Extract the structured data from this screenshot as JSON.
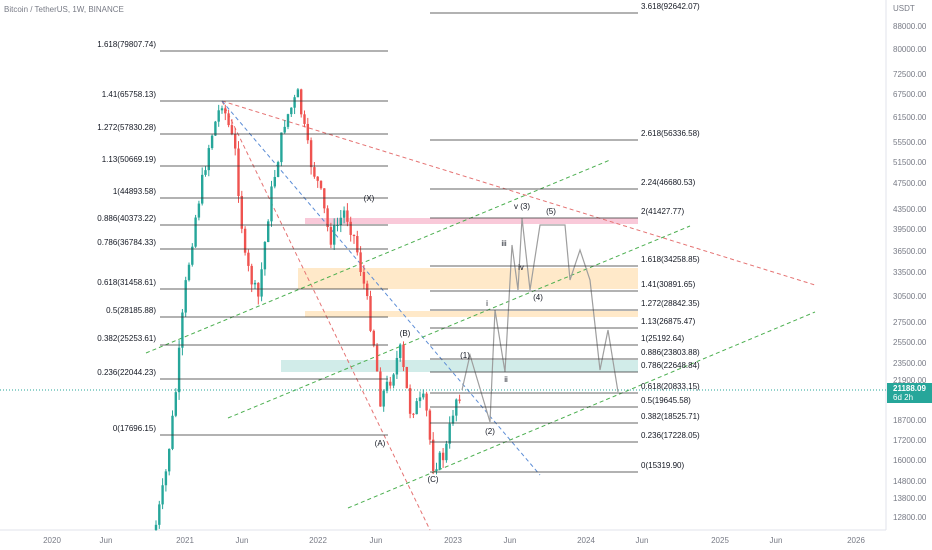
{
  "header": {
    "title": "Bitcoin / TetherUS, 1W, BINANCE"
  },
  "price_axis": {
    "unit": "USDT",
    "ticks": [
      "88000.00",
      "80000.00",
      "72500.00",
      "67500.00",
      "61500.00",
      "55500.00",
      "51500.00",
      "47500.00",
      "43500.00",
      "39500.00",
      "36500.00",
      "33500.00",
      "30500.00",
      "27500.00",
      "25500.00",
      "23500.00",
      "21900.00",
      "18700.00",
      "17200.00",
      "16000.00",
      "14800.00",
      "13800.00",
      "12800.00"
    ]
  },
  "current_price": {
    "value": "21188.09",
    "countdown": "6d 2h"
  },
  "time_axis": {
    "labels": [
      "2020",
      "Jun",
      "2021",
      "Jun",
      "2022",
      "Jun",
      "2023",
      "Jun",
      "2024",
      "Jun",
      "2025",
      "Jun",
      "2026"
    ]
  },
  "fib_left": {
    "levels": [
      "1.618(79807.74)",
      "1.41(65758.13)",
      "1.272(57830.28)",
      "1.13(50669.19)",
      "1(44893.58)",
      "0.886(40373.22)",
      "0.786(36784.33)",
      "0.618(31458.61)",
      "0.5(28185.88)",
      "0.382(25253.61)",
      "0.236(22044.23)",
      "0(17696.15)"
    ]
  },
  "fib_right": {
    "levels": [
      "3.618(92642.07)",
      "2.618(56336.58)",
      "2.24(46680.53)",
      "2(41427.77)",
      "1.618(34258.85)",
      "1.41(30891.65)",
      "1.272(28842.35)",
      "1.13(26875.47)",
      "1(25192.64)",
      "0.886(23803.88)",
      "0.786(22648.84)",
      "0.618(20833.15)",
      "0.5(19645.58)",
      "0.382(18525.71)",
      "0.236(17228.05)",
      "0(15319.90)"
    ]
  },
  "wave_labels": [
    "(X)",
    "(B)",
    "(A)",
    "(C)",
    "(1)",
    "(2)",
    "i",
    "ii",
    "iii",
    "iv",
    "v (3)",
    "(4)",
    "(5)"
  ]
}
